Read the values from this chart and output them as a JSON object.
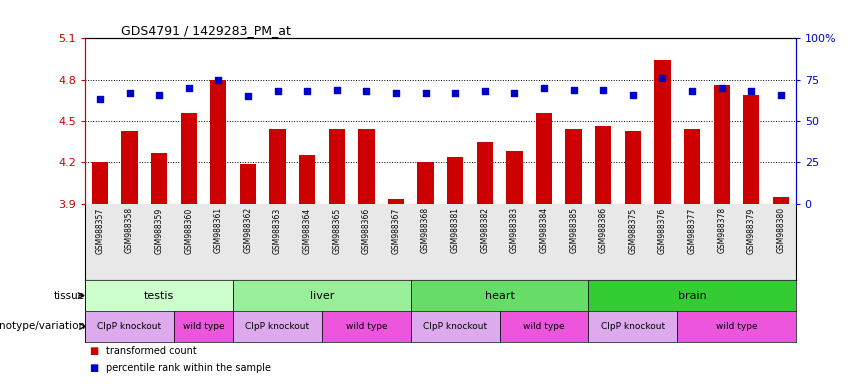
{
  "title": "GDS4791 / 1429283_PM_at",
  "samples": [
    "GSM988357",
    "GSM988358",
    "GSM988359",
    "GSM988360",
    "GSM988361",
    "GSM988362",
    "GSM988363",
    "GSM988364",
    "GSM988365",
    "GSM988366",
    "GSM988367",
    "GSM988368",
    "GSM988381",
    "GSM988382",
    "GSM988383",
    "GSM988384",
    "GSM988385",
    "GSM988386",
    "GSM988375",
    "GSM988376",
    "GSM988377",
    "GSM988378",
    "GSM988379",
    "GSM988380"
  ],
  "bar_values": [
    4.2,
    4.43,
    4.27,
    4.56,
    4.8,
    4.19,
    4.44,
    4.25,
    4.44,
    4.44,
    3.93,
    4.2,
    4.24,
    4.35,
    4.28,
    4.56,
    4.44,
    4.46,
    4.43,
    4.94,
    4.44,
    4.76,
    4.69,
    3.95
  ],
  "percentile_values": [
    63,
    67,
    66,
    70,
    75,
    65,
    68,
    68,
    69,
    68,
    67,
    67,
    67,
    68,
    67,
    70,
    69,
    69,
    66,
    76,
    68,
    70,
    68,
    66
  ],
  "ymin": 3.9,
  "ymax": 5.1,
  "yticks": [
    3.9,
    4.2,
    4.5,
    4.8,
    5.1
  ],
  "ytick_labels": [
    "3.9",
    "4.2",
    "4.5",
    "4.8",
    "5.1"
  ],
  "right_yticks": [
    0,
    25,
    50,
    75,
    100
  ],
  "right_ytick_labels": [
    "0",
    "25",
    "50",
    "75",
    "100%"
  ],
  "bar_color": "#cc0000",
  "dot_color": "#0000cc",
  "tissues": [
    {
      "label": "testis",
      "start": 0,
      "end": 5,
      "color": "#ccffcc"
    },
    {
      "label": "liver",
      "start": 5,
      "end": 11,
      "color": "#99ee99"
    },
    {
      "label": "heart",
      "start": 11,
      "end": 17,
      "color": "#66dd66"
    },
    {
      "label": "brain",
      "start": 17,
      "end": 24,
      "color": "#33cc33"
    }
  ],
  "genotypes": [
    {
      "label": "ClpP knockout",
      "start": 0,
      "end": 3,
      "color": "#ddaaee"
    },
    {
      "label": "wild type",
      "start": 3,
      "end": 5,
      "color": "#ee66dd"
    },
    {
      "label": "ClpP knockout",
      "start": 5,
      "end": 8,
      "color": "#ddaaee"
    },
    {
      "label": "wild type",
      "start": 8,
      "end": 11,
      "color": "#ee66dd"
    },
    {
      "label": "ClpP knockout",
      "start": 11,
      "end": 14,
      "color": "#ddaaee"
    },
    {
      "label": "wild type",
      "start": 14,
      "end": 17,
      "color": "#ee66dd"
    },
    {
      "label": "ClpP knockout",
      "start": 17,
      "end": 20,
      "color": "#ddaaee"
    },
    {
      "label": "wild type",
      "start": 20,
      "end": 24,
      "color": "#ee66dd"
    }
  ],
  "legend_items": [
    {
      "label": "transformed count",
      "color": "#cc0000"
    },
    {
      "label": "percentile rank within the sample",
      "color": "#0000cc"
    }
  ],
  "tissue_label": "tissue",
  "genotype_label": "genotype/variation",
  "grid_lines": [
    4.2,
    4.5,
    4.8
  ]
}
